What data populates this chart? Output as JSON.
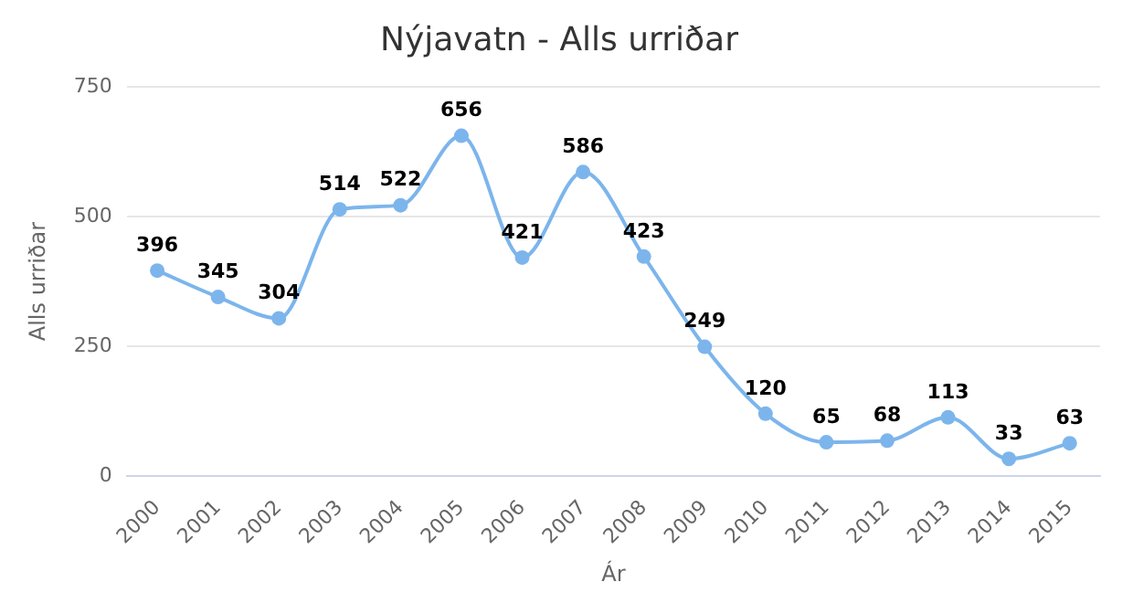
{
  "chart_data": {
    "type": "line",
    "title": "Nýjavatn - Alls urriðar",
    "xlabel": "Ár",
    "ylabel": "Alls urriðar",
    "categories": [
      "2000",
      "2001",
      "2002",
      "2003",
      "2004",
      "2005",
      "2006",
      "2007",
      "2008",
      "2009",
      "2010",
      "2011",
      "2012",
      "2013",
      "2014",
      "2015"
    ],
    "series": [
      {
        "color": "#7cb5ec",
        "values": [
          396,
          345,
          304,
          514,
          522,
          656,
          421,
          586,
          423,
          249,
          120,
          65,
          68,
          113,
          33,
          63
        ]
      }
    ],
    "ylim": [
      0,
      750
    ],
    "yticks": [
      0,
      250,
      500,
      750
    ],
    "grid": "y",
    "legend": false,
    "marker": "circle",
    "line_style": "solid",
    "data_labels": true
  }
}
